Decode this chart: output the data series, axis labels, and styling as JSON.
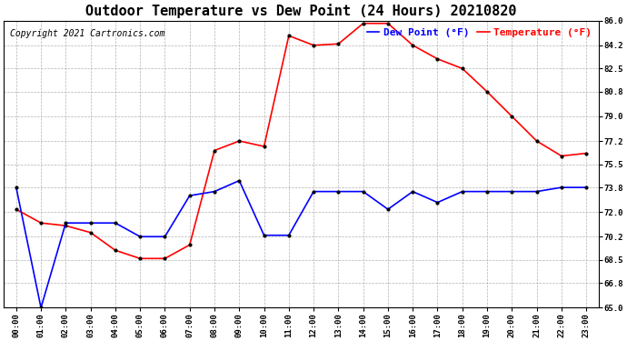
{
  "title": "Outdoor Temperature vs Dew Point (24 Hours) 20210820",
  "copyright": "Copyright 2021 Cartronics.com",
  "legend_dew": "Dew Point (°F)",
  "legend_temp": "Temperature (°F)",
  "x_labels": [
    "00:00",
    "01:00",
    "02:00",
    "03:00",
    "04:00",
    "05:00",
    "06:00",
    "07:00",
    "08:00",
    "09:00",
    "10:00",
    "11:00",
    "12:00",
    "13:00",
    "14:00",
    "15:00",
    "16:00",
    "17:00",
    "18:00",
    "19:00",
    "20:00",
    "21:00",
    "22:00",
    "23:00"
  ],
  "temperature": [
    72.2,
    71.2,
    71.0,
    70.5,
    69.2,
    68.6,
    68.6,
    69.6,
    76.5,
    77.2,
    76.8,
    84.9,
    84.2,
    84.3,
    85.8,
    85.8,
    84.2,
    83.2,
    82.5,
    80.8,
    79.0,
    77.2,
    76.1,
    76.3
  ],
  "dew_point": [
    73.8,
    65.0,
    71.2,
    71.2,
    71.2,
    70.2,
    70.2,
    73.2,
    73.5,
    74.3,
    70.3,
    70.3,
    73.5,
    73.5,
    73.5,
    72.2,
    73.5,
    72.7,
    73.5,
    73.5,
    73.5,
    73.5,
    73.8,
    73.8
  ],
  "ylim_min": 65.0,
  "ylim_max": 86.0,
  "yticks": [
    65.0,
    66.8,
    68.5,
    70.2,
    72.0,
    73.8,
    75.5,
    77.2,
    79.0,
    80.8,
    82.5,
    84.2,
    86.0
  ],
  "temp_color": "red",
  "dew_color": "blue",
  "grid_color": "#aaaaaa",
  "bg_color": "white",
  "title_fontsize": 11,
  "copyright_fontsize": 7,
  "legend_fontsize": 8
}
